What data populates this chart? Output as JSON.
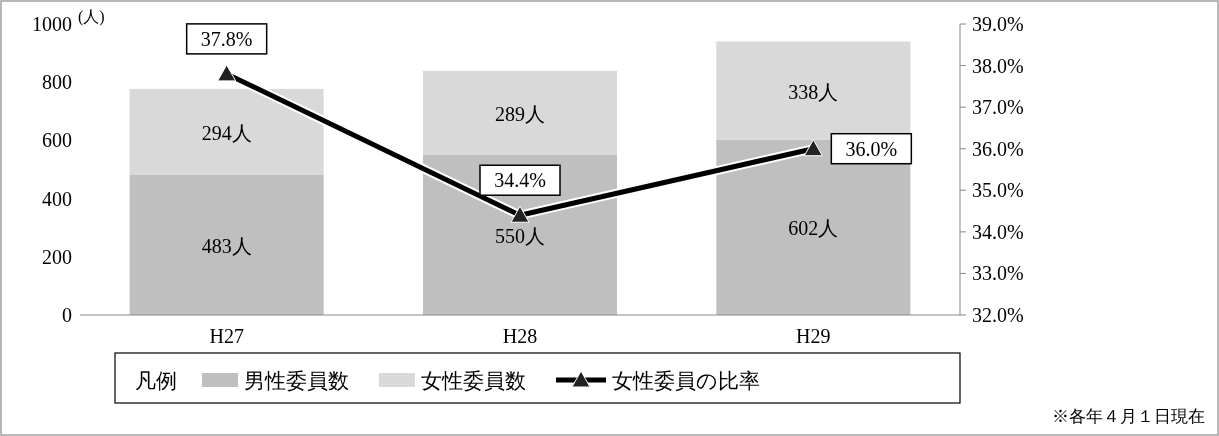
{
  "chart_data": {
    "type": "bar",
    "stacked": true,
    "categories": [
      "H27",
      "H28",
      "H29"
    ],
    "ylabel": "(人)",
    "ylim": [
      0,
      1000
    ],
    "yticks": [
      0,
      200,
      400,
      600,
      800,
      1000
    ],
    "y2lim": [
      32,
      39
    ],
    "y2ticks": [
      {
        "value": 32,
        "label": "32.0%"
      },
      {
        "value": 33,
        "label": "33.0%"
      },
      {
        "value": 34,
        "label": "34.0%"
      },
      {
        "value": 35,
        "label": "35.0%"
      },
      {
        "value": 36,
        "label": "36.0%"
      },
      {
        "value": 37,
        "label": "37.0%"
      },
      {
        "value": 38,
        "label": "38.0%"
      },
      {
        "value": 39,
        "label": "39.0%"
      }
    ],
    "series": [
      {
        "name": "男性委員数",
        "color": "#bfbfbf",
        "values": [
          483,
          550,
          602
        ],
        "value_labels": [
          "483人",
          "550人",
          "602人"
        ]
      },
      {
        "name": "女性委員数",
        "color": "#d9d9d9",
        "values": [
          294,
          289,
          338
        ],
        "value_labels": [
          "294人",
          "289人",
          "338人"
        ]
      },
      {
        "name": "女性委員の比率",
        "type": "line",
        "axis": "y2",
        "color": "#000000",
        "marker": "triangle",
        "values": [
          37.8,
          34.4,
          36.0
        ],
        "value_labels": [
          "37.8%",
          "34.4%",
          "36.0%"
        ]
      }
    ],
    "legend": "bottom",
    "legend_title": "凡例",
    "grid": false,
    "annotations": [
      "※各年４月１日現在"
    ]
  }
}
